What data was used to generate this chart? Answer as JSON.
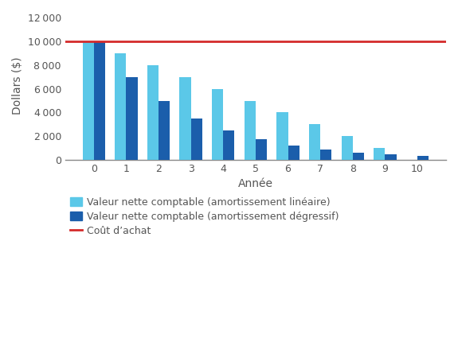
{
  "years": [
    0,
    1,
    2,
    3,
    4,
    5,
    6,
    7,
    8,
    9,
    10
  ],
  "linear_values": [
    10000,
    9000,
    8000,
    7000,
    6000,
    5000,
    4000,
    3000,
    2000,
    1000,
    0
  ],
  "degressive_values": [
    10000,
    7000,
    5000,
    3500,
    2500,
    1750,
    1200,
    850,
    600,
    450,
    350
  ],
  "purchase_cost": 10000,
  "color_linear": "#5BC8E8",
  "color_degressive": "#1B5EAB",
  "color_line": "#D42B2B",
  "ylabel": "Dollars ($)",
  "xlabel": "Année",
  "ylim": [
    0,
    12500
  ],
  "yticks": [
    0,
    2000,
    4000,
    6000,
    8000,
    10000,
    12000
  ],
  "ytick_labels": [
    "0",
    "2 000",
    "4 000",
    "6 000",
    "8 000",
    "10 000",
    "12 000"
  ],
  "legend_linear": "Valeur nette comptable (amortissement linéaire)",
  "legend_degressive": "Valeur nette comptable (amortissement dégressif)",
  "legend_line": "Coût d’achat",
  "bar_width": 0.35,
  "background_color": "#ffffff",
  "axis_line_color": "#888888",
  "tick_label_color": "#555555"
}
